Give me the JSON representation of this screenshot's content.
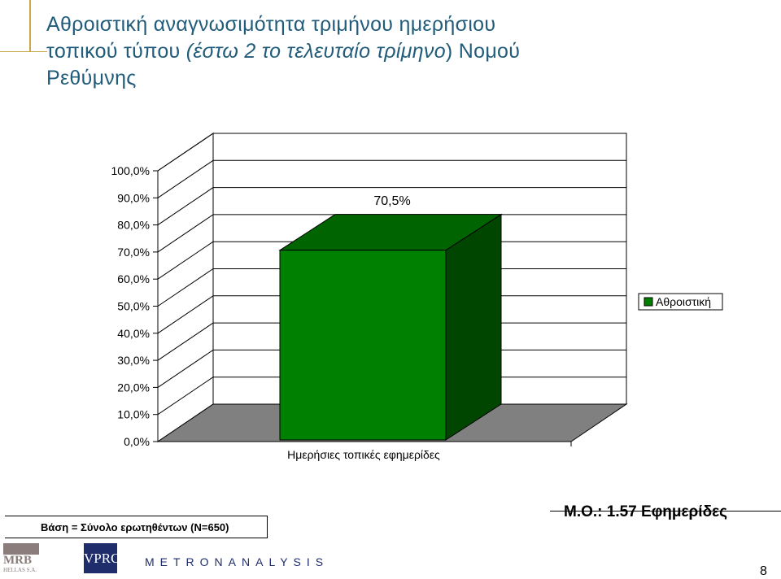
{
  "title": {
    "line1": "Αθροιστική αναγνωσιμότητα τριμήνου ημερήσιου",
    "line2_plain": "τοπικού τύπου ",
    "line2_italic": "(έστω 2 το τελευταίο τρίμηνο",
    "line2_end": ") Νομού",
    "line3": "Ρεθύμνης"
  },
  "chart_data": {
    "type": "bar",
    "categories": [
      "Ημερήσιες τοπικές εφημερίδες"
    ],
    "series": [
      {
        "name": "Αθροιστική",
        "values": [
          70.5
        ]
      }
    ],
    "data_labels": [
      "70,5%"
    ],
    "yticks": [
      "0,0%",
      "10,0%",
      "20,0%",
      "30,0%",
      "40,0%",
      "50,0%",
      "60,0%",
      "70,0%",
      "80,0%",
      "90,0%",
      "100,0%"
    ],
    "ylim": [
      0,
      100
    ],
    "legend": "right",
    "grid": true,
    "colors": {
      "bar_front": "#008000",
      "bar_top": "#006400",
      "bar_side": "#004600",
      "floor": "#808080"
    }
  },
  "footer": {
    "base": "Βάση = Σύνολο ερωτηθέντων (Ν=650)",
    "mo": "Μ.Ο.: 1.57 Εφημερίδες",
    "page": "8"
  },
  "logos": {
    "mrb_name": "MRB",
    "mrb_sub": "HELLAS S.A.",
    "vprc": "VPRC",
    "metron": "METRONANALYSIS"
  }
}
